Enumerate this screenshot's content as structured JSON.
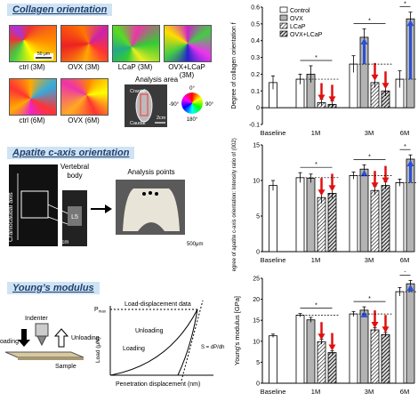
{
  "sections": {
    "collagen": "Collagen orientation",
    "apatite": "Apatite c-axis orientation",
    "young": "Young’s modulus"
  },
  "panel1": {
    "captions": [
      "ctrl (3M)",
      "OVX (3M)",
      "LCaP (3M)",
      "OVX+LCaP (3M)",
      "ctrl (6M)",
      "OVX (6M)"
    ],
    "scale_50": "50 μm",
    "analysis_area": "Analysis area",
    "cranial": "Cranial",
    "caudal": "Caudal",
    "scale_2cm": "2cm",
    "deg0": "0°",
    "deg90": "90°",
    "degm90": "-90°",
    "deg180": "180°"
  },
  "panel2": {
    "cc_axis": "Craniocaudal axis",
    "vertebral": "Vertebral",
    "body": "body",
    "l5": "L5",
    "analysis_points": "Analysis points",
    "scale_1cm": "1cm",
    "scale_500": "500μm"
  },
  "panel3": {
    "indenter": "Indenter",
    "loading_arrow": "oading",
    "unloading_arrow": "Unloading",
    "sample": "Sample",
    "ld_title": "Load-displacement data",
    "pmax": "P",
    "pmax_sub": "max",
    "loading": "Loading",
    "unloading": "Unloading",
    "load_axis": "Load (μN)",
    "disp_axis": "Penetration displacement (nm)",
    "s_eq": "S = dP/dh"
  },
  "chart_data": [
    {
      "type": "bar",
      "ylabel": "Degree of collagen orientation f",
      "ylim": [
        -0.1,
        0.6
      ],
      "yticks": [
        "-0.1",
        "0",
        "0.1",
        "0.2",
        "0.3",
        "0.4",
        "0.5",
        "0.6"
      ],
      "groups": [
        "Baseline",
        "1M",
        "3M",
        "6M"
      ],
      "legend": [
        "Control",
        "OVX",
        "LCaP",
        "OVX+LCaP"
      ],
      "colors": {
        "Control": "#ffffff",
        "OVX": "#b3b3b3",
        "LCaP": "#ffffff",
        "OVX+LCaP": "#555555"
      },
      "values": {
        "Baseline": [
          0.15
        ],
        "1M": [
          0.17,
          0.2,
          0.03,
          0.02
        ],
        "3M": [
          0.26,
          0.42,
          0.15,
          0.1
        ],
        "6M": [
          0.17,
          0.53
        ]
      },
      "errors": {
        "Baseline": [
          0.04
        ],
        "1M": [
          0.03,
          0.05,
          0.02,
          0.02
        ],
        "3M": [
          0.05,
          0.05,
          0.03,
          0.03
        ],
        "6M": [
          0.05,
          0.04
        ]
      }
    },
    {
      "type": "bar",
      "ylabel": "Degree of apatite c-axis orientation: Intensity ratio of (002) / (310)",
      "ylim": [
        0,
        15
      ],
      "yticks": [
        "0",
        "5",
        "10",
        "15"
      ],
      "groups": [
        "Baseline",
        "1M",
        "3M",
        "6M"
      ],
      "values": {
        "Baseline": [
          9.3
        ],
        "1M": [
          10.4,
          10.3,
          7.6,
          8.2
        ],
        "3M": [
          10.7,
          11.6,
          8.6,
          9.3
        ],
        "6M": [
          9.7,
          13.0
        ]
      },
      "errors": {
        "Baseline": [
          0.7
        ],
        "1M": [
          0.7,
          0.6,
          0.8,
          0.7
        ],
        "3M": [
          0.5,
          0.6,
          0.6,
          0.5
        ],
        "6M": [
          0.5,
          0.6
        ]
      }
    },
    {
      "type": "bar",
      "ylabel": "Young’s modulus [GPa]",
      "ylim": [
        0,
        25
      ],
      "yticks": [
        "0",
        "5",
        "10",
        "15",
        "20",
        "25"
      ],
      "groups": [
        "Baseline",
        "1M",
        "3M",
        "6M"
      ],
      "values": {
        "Baseline": [
          11.3
        ],
        "1M": [
          16.2,
          15.1,
          9.9,
          7.3
        ],
        "3M": [
          16.5,
          17.4,
          12.7,
          11.6
        ],
        "6M": [
          21.8,
          23.7
        ]
      },
      "errors": {
        "Baseline": [
          0.4
        ],
        "1M": [
          0.4,
          0.6,
          0.6,
          0.4
        ],
        "3M": [
          0.6,
          0.8,
          0.5,
          0.5
        ],
        "6M": [
          1.0,
          0.8
        ]
      }
    }
  ]
}
